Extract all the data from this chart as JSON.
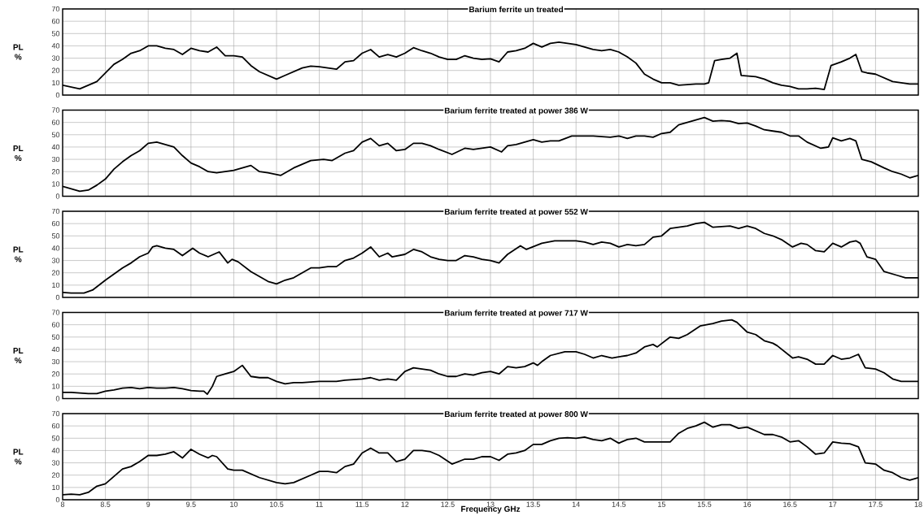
{
  "chart_data": [
    {
      "type": "line",
      "title": "**Barium ferrite un treated**",
      "ylabel": "PL %",
      "color": "#000000",
      "grid": true,
      "tick_labels": "y",
      "xlim": [
        8,
        18
      ],
      "ylim": [
        0,
        70
      ],
      "xticks": [
        8,
        8.5,
        9,
        9.5,
        10,
        10.5,
        11,
        11.5,
        12,
        12.5,
        13,
        13.5,
        14,
        14.5,
        15,
        15.5,
        16,
        16.5,
        17,
        17.5,
        18
      ],
      "yticks": [
        0,
        10,
        20,
        30,
        40,
        50,
        60,
        70
      ],
      "x": [
        8,
        8.1,
        8.2,
        8.3,
        8.4,
        8.5,
        8.6,
        8.7,
        8.8,
        8.9,
        9,
        9.1,
        9.2,
        9.3,
        9.4,
        9.5,
        9.6,
        9.7,
        9.8,
        9.9,
        10,
        10.1,
        10.2,
        10.3,
        10.4,
        10.5,
        10.6,
        10.7,
        10.8,
        10.9,
        11,
        11.1,
        11.2,
        11.3,
        11.4,
        11.5,
        11.6,
        11.7,
        11.8,
        11.9,
        12,
        12.1,
        12.2,
        12.3,
        12.4,
        12.5,
        12.6,
        12.7,
        12.8,
        12.9,
        13,
        13.1,
        13.2,
        13.3,
        13.4,
        13.5,
        13.6,
        13.7,
        13.8,
        13.9,
        14,
        14.1,
        14.2,
        14.3,
        14.4,
        14.5,
        14.6,
        14.7,
        14.8,
        14.9,
        15,
        15.1,
        15.2,
        15.3,
        15.4,
        15.5,
        15.55,
        15.62,
        15.7,
        15.8,
        15.88,
        15.93,
        16.1,
        16.2,
        16.3,
        16.4,
        16.5,
        16.6,
        16.7,
        16.8,
        16.9,
        16.98,
        17.1,
        17.2,
        17.27,
        17.34,
        17.4,
        17.5,
        17.6,
        17.7,
        17.8,
        17.9,
        18
      ],
      "values": [
        8,
        6.5,
        5,
        8,
        11,
        18,
        25,
        29,
        34,
        36,
        40,
        40,
        38,
        37,
        33,
        38,
        36,
        35,
        39,
        32,
        32,
        31,
        24,
        19,
        16,
        13,
        16,
        19,
        22,
        23.5,
        23,
        22,
        21,
        27,
        28,
        34,
        37,
        31,
        33,
        31,
        34,
        38.5,
        36,
        34,
        31,
        29,
        29,
        32,
        30,
        29,
        29.5,
        27,
        35,
        36,
        38,
        42,
        39,
        42,
        43,
        42,
        41,
        39,
        37,
        36,
        37,
        35,
        31,
        26,
        17,
        13,
        10,
        10,
        8,
        8.5,
        9,
        9,
        10,
        28,
        29,
        30,
        34,
        16,
        15,
        13,
        10,
        8,
        7,
        5,
        5,
        5.5,
        4.5,
        24,
        27,
        30,
        33,
        19,
        18,
        17,
        14,
        11,
        10,
        9,
        9
      ]
    },
    {
      "type": "line",
      "title": "**Barium ferrite treated at power 386 W**",
      "ylabel": "PL %",
      "color": "#000000",
      "grid": true,
      "tick_labels": "y",
      "xlim": [
        8,
        18
      ],
      "ylim": [
        0,
        70
      ],
      "xticks": [
        8,
        8.5,
        9,
        9.5,
        10,
        10.5,
        11,
        11.5,
        12,
        12.5,
        13,
        13.5,
        14,
        14.5,
        15,
        15.5,
        16,
        16.5,
        17,
        17.5,
        18
      ],
      "yticks": [
        0,
        10,
        20,
        30,
        40,
        50,
        60,
        70
      ],
      "x": [
        8,
        8.1,
        8.2,
        8.3,
        8.4,
        8.5,
        8.6,
        8.7,
        8.8,
        8.9,
        9,
        9.1,
        9.2,
        9.3,
        9.4,
        9.5,
        9.6,
        9.7,
        9.8,
        9.9,
        10,
        10.1,
        10.2,
        10.3,
        10.4,
        10.55,
        10.7,
        10.8,
        10.9,
        11.05,
        11.15,
        11.3,
        11.4,
        11.5,
        11.6,
        11.7,
        11.8,
        11.9,
        12,
        12.1,
        12.2,
        12.3,
        12.4,
        12.55,
        12.7,
        12.8,
        13,
        13.13,
        13.2,
        13.3,
        13.4,
        13.5,
        13.6,
        13.7,
        13.8,
        13.95,
        14.2,
        14.4,
        14.5,
        14.6,
        14.7,
        14.8,
        14.9,
        15,
        15.1,
        15.2,
        15.3,
        15.4,
        15.5,
        15.6,
        15.7,
        15.8,
        15.9,
        16,
        16.1,
        16.2,
        16.3,
        16.4,
        16.5,
        16.6,
        16.7,
        16.86,
        16.95,
        17,
        17.1,
        17.2,
        17.27,
        17.34,
        17.45,
        17.6,
        17.7,
        17.8,
        17.9,
        18
      ],
      "values": [
        8,
        6,
        4,
        5,
        9,
        14,
        22,
        28,
        33,
        37,
        43,
        44,
        42,
        40,
        33,
        27,
        24,
        20,
        19,
        20,
        21,
        23,
        25,
        20,
        19,
        17,
        23,
        26,
        29,
        30,
        29,
        35,
        37,
        44,
        47,
        41,
        43,
        37,
        38,
        43,
        43,
        41,
        38,
        34,
        39,
        38,
        40,
        36,
        41,
        42,
        44,
        46,
        44,
        45,
        45,
        49,
        49,
        48,
        49,
        47,
        49,
        49,
        48,
        51,
        52,
        58,
        60,
        62,
        64,
        61,
        61.5,
        61,
        59,
        59.5,
        57,
        54,
        53,
        52,
        49,
        49,
        44,
        39,
        40,
        47.5,
        45,
        47,
        45,
        30,
        28,
        23,
        20,
        18,
        15,
        17
      ]
    },
    {
      "type": "line",
      "title": "**Barium ferrite treated at power 552 W**",
      "ylabel": "PL %",
      "color": "#000000",
      "grid": true,
      "tick_labels": "y",
      "xlim": [
        8,
        18
      ],
      "ylim": [
        0,
        70
      ],
      "xticks": [
        8,
        8.5,
        9,
        9.5,
        10,
        10.5,
        11,
        11.5,
        12,
        12.5,
        13,
        13.5,
        14,
        14.5,
        15,
        15.5,
        16,
        16.5,
        17,
        17.5,
        18
      ],
      "yticks": [
        0,
        10,
        20,
        30,
        40,
        50,
        60,
        70
      ],
      "x": [
        8,
        8.1,
        8.25,
        8.35,
        8.5,
        8.6,
        8.7,
        8.8,
        8.9,
        9,
        9.05,
        9.1,
        9.2,
        9.3,
        9.4,
        9.52,
        9.6,
        9.7,
        9.83,
        9.93,
        9.98,
        10.05,
        10.2,
        10.3,
        10.4,
        10.5,
        10.6,
        10.7,
        10.8,
        10.9,
        11,
        11.1,
        11.2,
        11.3,
        11.4,
        11.5,
        11.6,
        11.7,
        11.8,
        11.85,
        12,
        12.1,
        12.2,
        12.3,
        12.4,
        12.5,
        12.6,
        12.7,
        12.8,
        12.9,
        13,
        13.1,
        13.2,
        13.35,
        13.42,
        13.6,
        13.75,
        13.9,
        14,
        14.1,
        14.2,
        14.3,
        14.4,
        14.5,
        14.6,
        14.7,
        14.8,
        14.9,
        15,
        15.1,
        15.2,
        15.3,
        15.4,
        15.5,
        15.6,
        15.7,
        15.8,
        15.9,
        16,
        16.1,
        16.2,
        16.3,
        16.4,
        16.53,
        16.63,
        16.7,
        16.8,
        16.9,
        17,
        17.1,
        17.2,
        17.27,
        17.32,
        17.4,
        17.5,
        17.6,
        17.75,
        17.85,
        18
      ],
      "values": [
        4,
        3.5,
        3.5,
        6,
        14,
        19,
        24,
        28,
        33,
        36,
        41,
        42,
        40,
        39,
        34,
        40,
        36,
        33,
        37,
        28,
        31,
        29,
        21,
        17,
        13,
        11,
        14,
        16,
        20,
        24,
        24,
        25,
        25,
        30,
        32,
        36,
        41,
        33,
        36,
        33,
        35,
        39,
        37,
        33,
        31,
        30,
        30,
        34,
        33,
        31,
        30,
        28,
        35,
        42,
        39,
        44,
        46,
        46,
        46,
        45,
        43,
        45,
        44,
        41,
        43,
        42,
        43,
        49,
        50,
        56,
        57,
        58,
        60,
        61,
        57,
        57.5,
        58,
        56,
        58,
        56,
        52,
        50,
        47,
        41,
        44,
        43,
        38,
        37,
        44,
        41,
        45,
        46,
        44,
        33,
        31,
        21,
        18,
        16,
        16
      ]
    },
    {
      "type": "line",
      "title": "**Barium ferrite treated at power 717 W**",
      "ylabel": "PL %",
      "color": "#000000",
      "grid": true,
      "tick_labels": "y",
      "xlim": [
        8,
        18
      ],
      "ylim": [
        0,
        70
      ],
      "xticks": [
        8,
        8.5,
        9,
        9.5,
        10,
        10.5,
        11,
        11.5,
        12,
        12.5,
        13,
        13.5,
        14,
        14.5,
        15,
        15.5,
        16,
        16.5,
        17,
        17.5,
        18
      ],
      "yticks": [
        0,
        10,
        20,
        30,
        40,
        50,
        60,
        70
      ],
      "x": [
        8,
        8.1,
        8.2,
        8.3,
        8.4,
        8.5,
        8.6,
        8.7,
        8.8,
        8.9,
        9,
        9.1,
        9.2,
        9.3,
        9.4,
        9.5,
        9.6,
        9.65,
        9.69,
        9.75,
        9.8,
        9.9,
        10,
        10.1,
        10.2,
        10.3,
        10.4,
        10.5,
        10.6,
        10.7,
        10.8,
        10.9,
        11,
        11.2,
        11.3,
        11.5,
        11.6,
        11.7,
        11.8,
        11.9,
        12,
        12.1,
        12.2,
        12.3,
        12.4,
        12.5,
        12.6,
        12.7,
        12.8,
        12.9,
        13,
        13.1,
        13.2,
        13.3,
        13.4,
        13.5,
        13.55,
        13.6,
        13.7,
        13.87,
        14,
        14.1,
        14.2,
        14.3,
        14.42,
        14.5,
        14.6,
        14.7,
        14.8,
        14.9,
        14.95,
        15.1,
        15.2,
        15.3,
        15.45,
        15.6,
        15.7,
        15.82,
        15.88,
        16,
        16.1,
        16.2,
        16.3,
        16.35,
        16.53,
        16.6,
        16.7,
        16.8,
        16.9,
        17,
        17.1,
        17.2,
        17.3,
        17.38,
        17.5,
        17.6,
        17.7,
        17.8,
        18
      ],
      "values": [
        5,
        5,
        4.5,
        4,
        4,
        6,
        7,
        8.5,
        9,
        8,
        9,
        8.5,
        8.5,
        9,
        8,
        6.5,
        6,
        6,
        3.5,
        10,
        18,
        20,
        22,
        27,
        18,
        17,
        17,
        14,
        12,
        13,
        13,
        13.5,
        14,
        14,
        15,
        16,
        17,
        15,
        16,
        15,
        22,
        25,
        24,
        23,
        20,
        18,
        18,
        20,
        19,
        21,
        22,
        20,
        26,
        25,
        26,
        29,
        27,
        30,
        35,
        38,
        38,
        36,
        33,
        35,
        33,
        34,
        35,
        37,
        42,
        44,
        42,
        50,
        49,
        52,
        59,
        61,
        63,
        64,
        62,
        54,
        52,
        47,
        45,
        43,
        33,
        34,
        32,
        28,
        28,
        35,
        32,
        33,
        36,
        25,
        24,
        21,
        16,
        14,
        14
      ]
    },
    {
      "type": "line",
      "title": "**Barium ferrite treated at power 800 W**",
      "ylabel": "PL %",
      "xlabel": "**Frequency GHz**",
      "color": "#000000",
      "grid": true,
      "xlim": [
        8,
        18
      ],
      "ylim": [
        0,
        70
      ],
      "xticks": [
        8,
        8.5,
        9,
        9.5,
        10,
        10.5,
        11,
        11.5,
        12,
        12.5,
        13,
        13.5,
        14,
        14.5,
        15,
        15.5,
        16,
        16.5,
        17,
        17.5,
        18
      ],
      "yticks": [
        0,
        10,
        20,
        30,
        40,
        50,
        60,
        70
      ],
      "x": [
        8,
        8.1,
        8.2,
        8.3,
        8.4,
        8.5,
        8.6,
        8.7,
        8.8,
        8.9,
        9,
        9.1,
        9.2,
        9.3,
        9.4,
        9.5,
        9.6,
        9.7,
        9.75,
        9.8,
        9.93,
        10,
        10.1,
        10.2,
        10.3,
        10.4,
        10.5,
        10.6,
        10.7,
        10.8,
        10.9,
        11,
        11.1,
        11.2,
        11.3,
        11.4,
        11.5,
        11.6,
        11.7,
        11.8,
        11.9,
        12,
        12.1,
        12.2,
        12.3,
        12.4,
        12.55,
        12.7,
        12.8,
        12.9,
        13,
        13.1,
        13.2,
        13.3,
        13.4,
        13.5,
        13.6,
        13.7,
        13.8,
        13.9,
        14,
        14.1,
        14.2,
        14.3,
        14.4,
        14.5,
        14.6,
        14.7,
        14.8,
        14.93,
        15.1,
        15.2,
        15.3,
        15.4,
        15.5,
        15.6,
        15.7,
        15.8,
        15.9,
        16,
        16.1,
        16.2,
        16.3,
        16.4,
        16.5,
        16.6,
        16.7,
        16.8,
        16.9,
        17,
        17.1,
        17.2,
        17.3,
        17.38,
        17.5,
        17.6,
        17.7,
        17.8,
        17.9,
        18
      ],
      "values": [
        4,
        4.5,
        4,
        6,
        11,
        13,
        19,
        25,
        27,
        31,
        36,
        36,
        37,
        39,
        34,
        41,
        37,
        34,
        36,
        35,
        25,
        24,
        24,
        21,
        18,
        16,
        14,
        13,
        14,
        17,
        20,
        23,
        23,
        22,
        27,
        29,
        38,
        42,
        38,
        38,
        31,
        33,
        40,
        40,
        39,
        36,
        29,
        33,
        33,
        35,
        35,
        32,
        37,
        38,
        40,
        45,
        45,
        48,
        50,
        50.5,
        50,
        51,
        49,
        48,
        50,
        46,
        49,
        50,
        47,
        47,
        47,
        54,
        58,
        60,
        63,
        59,
        61,
        61,
        58,
        59,
        56,
        53,
        53,
        51,
        47,
        48,
        43,
        37,
        38,
        47,
        46,
        45.5,
        43,
        30,
        29,
        24,
        22,
        18,
        16,
        18
      ]
    }
  ]
}
